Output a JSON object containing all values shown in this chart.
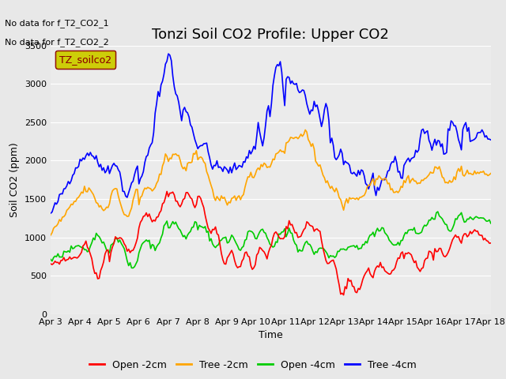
{
  "title": "Tonzi Soil CO2 Profile: Upper CO2",
  "ylabel": "Soil CO2 (ppm)",
  "xlabel": "Time",
  "no_data_text": [
    "No data for f_T2_CO2_1",
    "No data for f_T2_CO2_2"
  ],
  "legend_label": "TZ_soilco2",
  "xlim": [
    0,
    15
  ],
  "ylim": [
    0,
    3500
  ],
  "yticks": [
    0,
    500,
    1000,
    1500,
    2000,
    2500,
    3000,
    3500
  ],
  "xtick_labels": [
    "Apr 3",
    "Apr 4",
    "Apr 5",
    "Apr 6",
    "Apr 7",
    "Apr 8",
    "Apr 9",
    "Apr 10",
    "Apr 11",
    "Apr 12",
    "Apr 13",
    "Apr 14",
    "Apr 15",
    "Apr 16",
    "Apr 17",
    "Apr 18"
  ],
  "series_labels": [
    "Open -2cm",
    "Tree -2cm",
    "Open -4cm",
    "Tree -4cm"
  ],
  "series_colors": [
    "#ff0000",
    "#ffa500",
    "#00cc00",
    "#0000ff"
  ],
  "background_color": "#e8e8e8",
  "plot_bg_color": "#f0f0f0",
  "title_fontsize": 13,
  "axis_fontsize": 9,
  "legend_box_color": "#cccc00",
  "legend_text_color": "#8b0000"
}
